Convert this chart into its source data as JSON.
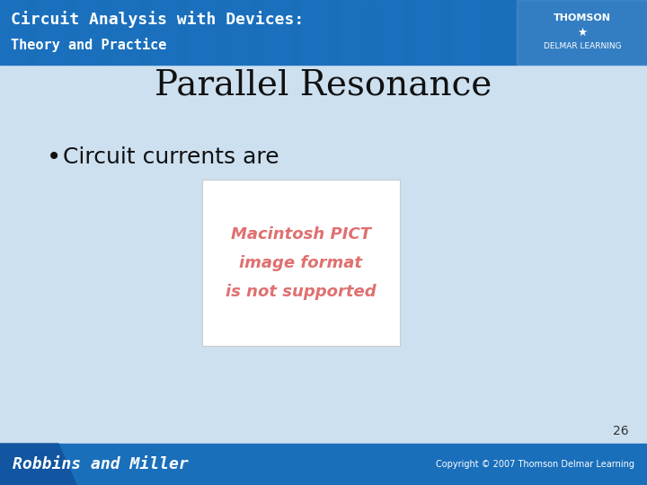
{
  "title": "Parallel Resonance",
  "bullet_text": "Circuit currents are",
  "slide_bg_color": "#cde0f0",
  "header_bg_color": "#1a6fbb",
  "header_title_line1": "Circuit Analysis with Devices:",
  "header_title_line2": "Theory and Practice",
  "header_text_color": "#ffffff",
  "footer_bg_color": "#1a6fbb",
  "footer_left_text": "Robbins and Miller",
  "footer_right_text": "Copyright © 2007 Thomson Delmar Learning",
  "footer_text_color": "#ffffff",
  "thomson_text": "THOMSON",
  "delmar_text": "DELMAR LEARNING",
  "page_number": "26",
  "image_placeholder_text_line1": "Macintosh PICT",
  "image_placeholder_text_line2": "image format",
  "image_placeholder_text_line3": "is not supported",
  "image_placeholder_color": "#e07070",
  "image_placeholder_bg": "#ffffff",
  "title_fontsize": 28,
  "bullet_fontsize": 18,
  "header_fontsize_line1": 13,
  "header_fontsize_line2": 11,
  "footer_fontsize": 10,
  "page_num_fontsize": 10
}
